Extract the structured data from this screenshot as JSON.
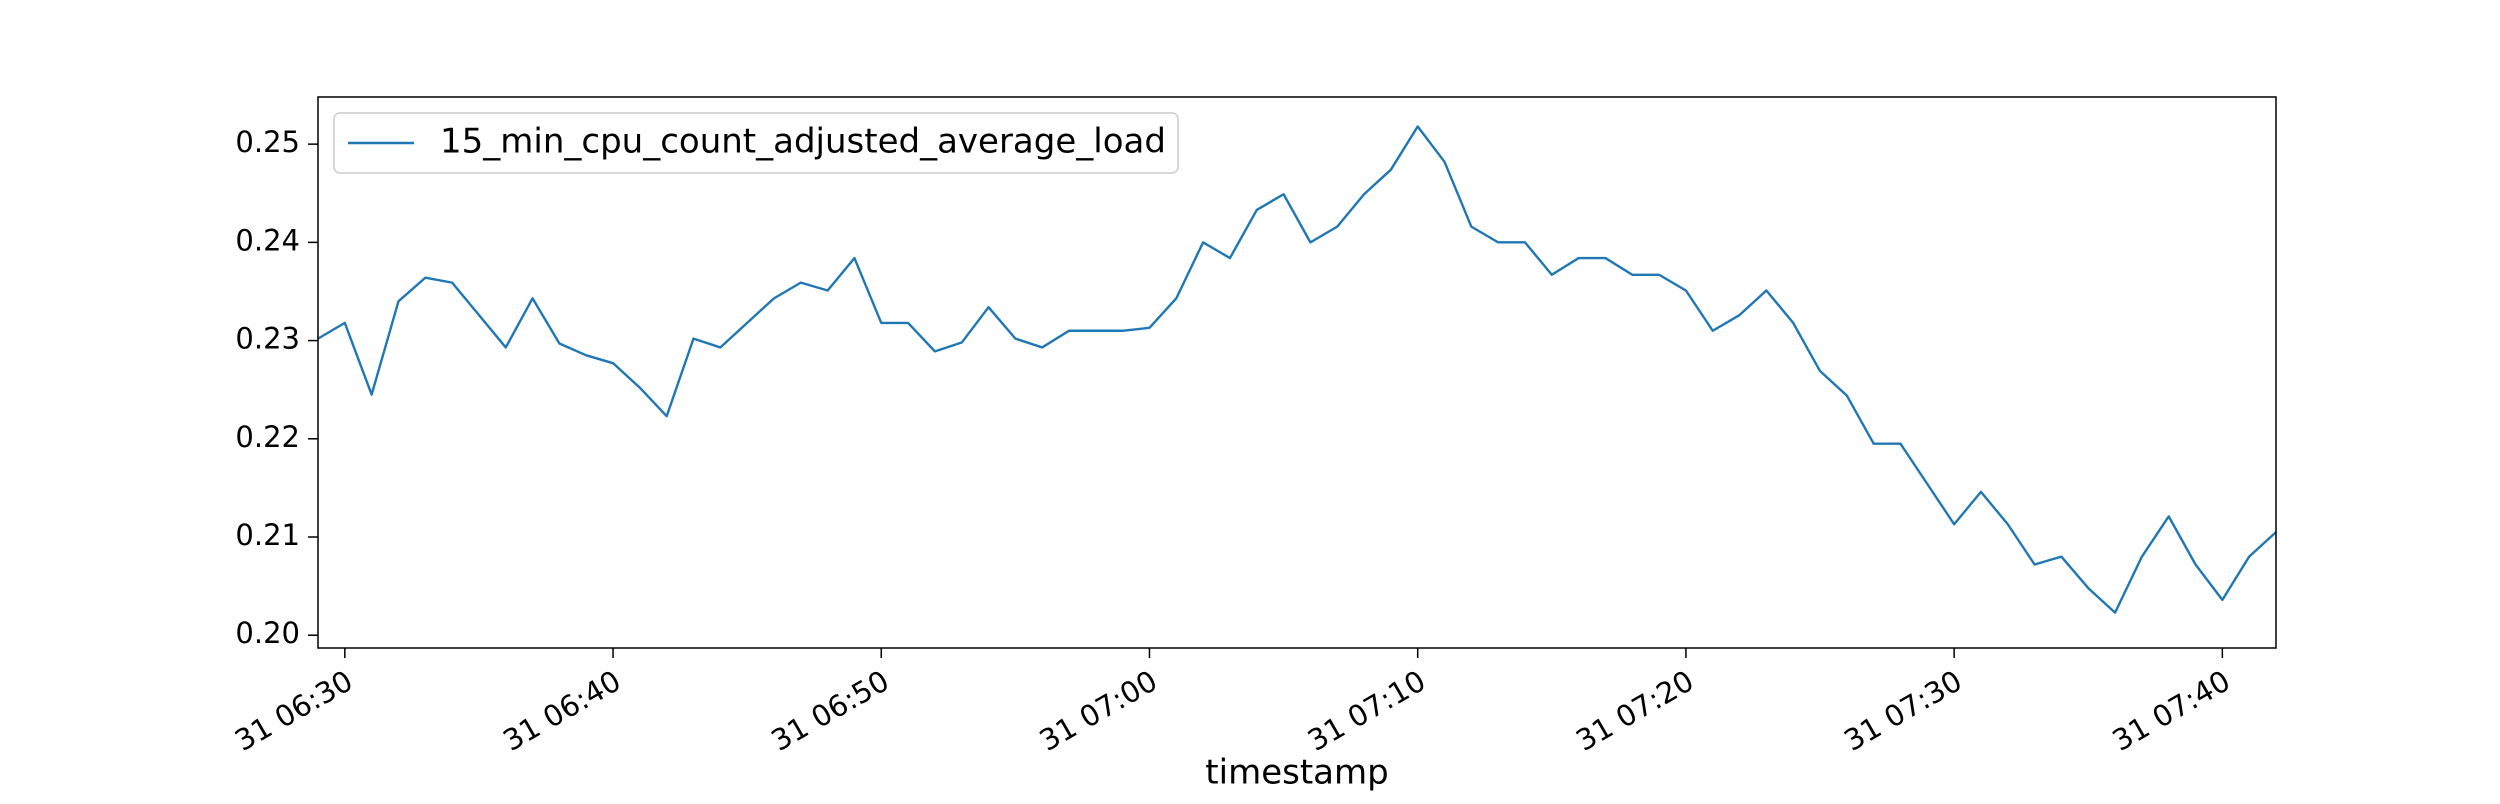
{
  "chart_data": {
    "type": "line",
    "x_label": "timestamp",
    "x": [
      "31 06:29",
      "31 06:30",
      "31 06:31",
      "31 06:32",
      "31 06:33",
      "31 06:34",
      "31 06:35",
      "31 06:36",
      "31 06:37",
      "31 06:38",
      "31 06:39",
      "31 06:40",
      "31 06:41",
      "31 06:42",
      "31 06:43",
      "31 06:44",
      "31 06:45",
      "31 06:46",
      "31 06:47",
      "31 06:48",
      "31 06:49",
      "31 06:50",
      "31 06:51",
      "31 06:52",
      "31 06:53",
      "31 06:54",
      "31 06:55",
      "31 06:56",
      "31 06:57",
      "31 06:58",
      "31 06:59",
      "31 07:00",
      "31 07:01",
      "31 07:02",
      "31 07:03",
      "31 07:04",
      "31 07:05",
      "31 07:06",
      "31 07:07",
      "31 07:08",
      "31 07:09",
      "31 07:10",
      "31 07:11",
      "31 07:12",
      "31 07:13",
      "31 07:14",
      "31 07:15",
      "31 07:16",
      "31 07:17",
      "31 07:18",
      "31 07:19",
      "31 07:20",
      "31 07:21",
      "31 07:22",
      "31 07:23",
      "31 07:24",
      "31 07:25",
      "31 07:26",
      "31 07:27",
      "31 07:28",
      "31 07:29",
      "31 07:30",
      "31 07:31",
      "31 07:32",
      "31 07:33",
      "31 07:34",
      "31 07:35",
      "31 07:36",
      "31 07:37",
      "31 07:38",
      "31 07:39",
      "31 07:40",
      "31 07:41",
      "31 07:42"
    ],
    "series": [
      {
        "name": "15_min_cpu_count_adjusted_average_load",
        "color": "#1f77b4",
        "values": [
          0.2302,
          0.2318,
          0.2245,
          0.234,
          0.2364,
          0.2359,
          0.2326,
          0.2293,
          0.2343,
          0.2297,
          0.2285,
          0.2277,
          0.2252,
          0.2223,
          0.2302,
          0.2293,
          0.2318,
          0.2343,
          0.2359,
          0.2351,
          0.2384,
          0.2318,
          0.2318,
          0.2289,
          0.2298,
          0.2334,
          0.2302,
          0.2293,
          0.231,
          0.231,
          0.231,
          0.2313,
          0.2343,
          0.24,
          0.2384,
          0.2433,
          0.2449,
          0.24,
          0.2416,
          0.2449,
          0.2474,
          0.2518,
          0.2482,
          0.2416,
          0.24,
          0.24,
          0.2367,
          0.2384,
          0.2384,
          0.2367,
          0.2367,
          0.2351,
          0.231,
          0.2326,
          0.2351,
          0.2318,
          0.2269,
          0.2244,
          0.2195,
          0.2195,
          0.2154,
          0.2113,
          0.2146,
          0.2113,
          0.2072,
          0.208,
          0.2048,
          0.2023,
          0.208,
          0.2121,
          0.2072,
          0.2036,
          0.208,
          0.2105
        ]
      }
    ],
    "xlim": [
      "31 06:29",
      "31 07:42"
    ],
    "xticks": [
      "31 06:30",
      "31 06:40",
      "31 06:50",
      "31 07:00",
      "31 07:10",
      "31 07:20",
      "31 07:30",
      "31 07:40"
    ],
    "ylim": [
      0.1987,
      0.2548
    ],
    "yticks": [
      {
        "value": 0.2,
        "label": "0.20"
      },
      0.21,
      0.22,
      0.23,
      0.24,
      0.25
    ],
    "legend": "upper left",
    "grid": false
  }
}
